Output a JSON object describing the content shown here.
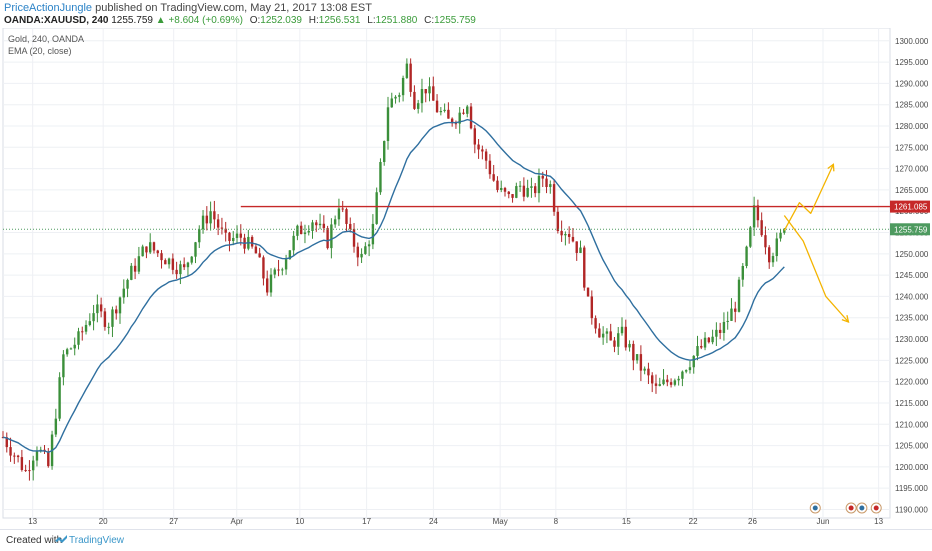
{
  "header": {
    "author": "PriceActionJungle",
    "published": " published on TradingView.com, May 21, 2017 13:08 EST",
    "symbol": "OANDA:XAUUSD, 240",
    "last": "1255.759",
    "change_arrow": "▲",
    "change": "+8.604 (+0.69%)",
    "o_label": "O:",
    "o_value": "1252.039",
    "h_label": "H:",
    "h_value": "1256.531",
    "l_label": "L:",
    "l_value": "1251.880",
    "c_label": "C:",
    "c_value": "1255.759"
  },
  "legend": {
    "series_title": "Gold, 240, OANDA",
    "indicator": "EMA (20, close)"
  },
  "footer": {
    "created_with": "Created with",
    "brand": "TradingView"
  },
  "colors": {
    "up_candle": "#3b8f3a",
    "down_candle": "#b12626",
    "ema": "#2f6f9f",
    "resistance": "#c62828",
    "scenario_arrows": "#f4b400",
    "price_badge": "#4d9a5f"
  },
  "chart_data": {
    "type": "candlestick",
    "title": "Gold, 240, OANDA",
    "indicator": "EMA (20, close)",
    "ylim": [
      1188,
      1303
    ],
    "y_ticks": [
      "1300.000",
      "1295.000",
      "1290.000",
      "1285.000",
      "1280.000",
      "1275.000",
      "1270.000",
      "1265.000",
      "1260.000",
      "1255.000",
      "1250.000",
      "1245.000",
      "1240.000",
      "1235.000",
      "1230.000",
      "1225.000",
      "1220.000",
      "1215.000",
      "1210.000",
      "1205.000",
      "1200.000",
      "1195.000",
      "1190.000"
    ],
    "x_ticks": [
      "13",
      "20",
      "27",
      "Apr",
      "10",
      "17",
      "24",
      "May",
      "8",
      "15",
      "22",
      "26",
      "Jun",
      "13"
    ],
    "resistance_level": 1261.085,
    "resistance_label": "1261.085",
    "last_price_label": "1255.759",
    "price_path": [
      {
        "t": 0,
        "close": 1207
      },
      {
        "t": 3,
        "close": 1203
      },
      {
        "t": 6,
        "close": 1199
      },
      {
        "t": 9,
        "close": 1205
      },
      {
        "t": 12,
        "close": 1200
      },
      {
        "t": 16,
        "close": 1226
      },
      {
        "t": 20,
        "close": 1230
      },
      {
        "t": 24,
        "close": 1237
      },
      {
        "t": 28,
        "close": 1234
      },
      {
        "t": 33,
        "close": 1244
      },
      {
        "t": 38,
        "close": 1252
      },
      {
        "t": 43,
        "close": 1249
      },
      {
        "t": 48,
        "close": 1246
      },
      {
        "t": 52,
        "close": 1256
      },
      {
        "t": 55,
        "close": 1260
      },
      {
        "t": 59,
        "close": 1253
      },
      {
        "t": 63,
        "close": 1254
      },
      {
        "t": 67,
        "close": 1250
      },
      {
        "t": 70,
        "close": 1242
      },
      {
        "t": 74,
        "close": 1248
      },
      {
        "t": 78,
        "close": 1255
      },
      {
        "t": 82,
        "close": 1258
      },
      {
        "t": 86,
        "close": 1253
      },
      {
        "t": 89,
        "close": 1262
      },
      {
        "t": 92,
        "close": 1254
      },
      {
        "t": 95,
        "close": 1249
      },
      {
        "t": 98,
        "close": 1256
      },
      {
        "t": 100,
        "close": 1270
      },
      {
        "t": 102,
        "close": 1285
      },
      {
        "t": 105,
        "close": 1288
      },
      {
        "t": 107,
        "close": 1294
      },
      {
        "t": 109,
        "close": 1286
      },
      {
        "t": 112,
        "close": 1289
      },
      {
        "t": 115,
        "close": 1284
      },
      {
        "t": 118,
        "close": 1281
      },
      {
        "t": 121,
        "close": 1283
      },
      {
        "t": 123,
        "close": 1286
      },
      {
        "t": 125,
        "close": 1276
      },
      {
        "t": 128,
        "close": 1272
      },
      {
        "t": 131,
        "close": 1265
      },
      {
        "t": 134,
        "close": 1263
      },
      {
        "t": 137,
        "close": 1266
      },
      {
        "t": 140,
        "close": 1264
      },
      {
        "t": 143,
        "close": 1268
      },
      {
        "t": 145,
        "close": 1266
      },
      {
        "t": 147,
        "close": 1257
      },
      {
        "t": 150,
        "close": 1255
      },
      {
        "t": 153,
        "close": 1250
      },
      {
        "t": 155,
        "close": 1238
      },
      {
        "t": 158,
        "close": 1232
      },
      {
        "t": 161,
        "close": 1229
      },
      {
        "t": 164,
        "close": 1231
      },
      {
        "t": 167,
        "close": 1226
      },
      {
        "t": 170,
        "close": 1222
      },
      {
        "t": 173,
        "close": 1218
      },
      {
        "t": 176,
        "close": 1220
      },
      {
        "t": 179,
        "close": 1222
      },
      {
        "t": 182,
        "close": 1225
      },
      {
        "t": 185,
        "close": 1228
      },
      {
        "t": 188,
        "close": 1230
      },
      {
        "t": 191,
        "close": 1233
      },
      {
        "t": 194,
        "close": 1238
      },
      {
        "t": 197,
        "close": 1250
      },
      {
        "t": 199,
        "close": 1260
      },
      {
        "t": 201,
        "close": 1256
      },
      {
        "t": 203,
        "close": 1250
      },
      {
        "t": 205,
        "close": 1252
      },
      {
        "t": 207,
        "close": 1255.76
      }
    ],
    "scenario_up": [
      [
        207,
        1255.5
      ],
      [
        211,
        1262
      ],
      [
        214,
        1259.5
      ],
      [
        220,
        1271
      ]
    ],
    "scenario_down": [
      [
        207,
        1259
      ],
      [
        212,
        1253
      ],
      [
        218,
        1240
      ],
      [
        224,
        1234
      ]
    ]
  }
}
